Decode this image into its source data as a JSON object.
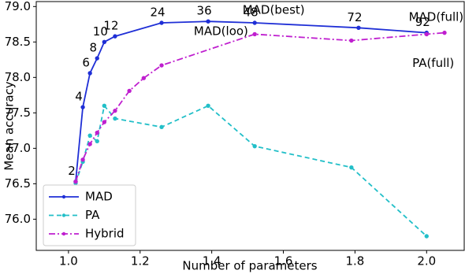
{
  "chart_data": {
    "type": "line",
    "x_label": "Number of parameters",
    "y_label": "Mean accuracy",
    "xlim": [
      0.91,
      2.105
    ],
    "ylim": [
      75.56,
      79.07
    ],
    "xticks": [
      {
        "value": 1,
        "label": "1.0"
      },
      1.2,
      1.4,
      1.6,
      1.8,
      {
        "value": 2,
        "label": "2.0"
      }
    ],
    "yticks": [
      {
        "value": 76,
        "label": "76.0"
      },
      76.5,
      {
        "value": 77,
        "label": "77.0"
      },
      77.5,
      {
        "value": 78,
        "label": "78.0"
      },
      78.5,
      {
        "value": 79,
        "label": "79.0"
      }
    ],
    "grid": false,
    "legend": "lower left",
    "series": [
      {
        "name": "MAD",
        "color": "#1f2fd6",
        "dash": "solid",
        "x": [
          1.02,
          1.04,
          1.06,
          1.08,
          1.1,
          1.13,
          1.26,
          1.39,
          1.52,
          1.81,
          2.0
        ],
        "values": [
          76.53,
          77.58,
          78.06,
          78.27,
          78.5,
          78.58,
          78.77,
          78.79,
          78.77,
          78.7,
          78.63
        ],
        "labels": [
          "2",
          "4",
          "6",
          "8",
          "10",
          "12",
          "24",
          "36",
          "48",
          "72",
          "92"
        ]
      },
      {
        "name": "PA",
        "color": "#22bfc8",
        "dash": "dashed",
        "x": [
          1.02,
          1.04,
          1.06,
          1.08,
          1.1,
          1.13,
          1.26,
          1.39,
          1.52,
          1.79,
          2.0
        ],
        "values": [
          76.51,
          76.81,
          77.18,
          77.1,
          77.6,
          77.42,
          77.3,
          77.6,
          77.03,
          76.73,
          75.76
        ]
      },
      {
        "name": "Hybrid",
        "color": "#bf1fcf",
        "dash": "dashdot",
        "x": [
          1.02,
          1.04,
          1.06,
          1.08,
          1.1,
          1.13,
          1.17,
          1.21,
          1.26,
          1.52,
          1.79,
          2.0,
          2.05
        ],
        "values": [
          76.53,
          76.84,
          77.06,
          77.22,
          77.37,
          77.53,
          77.81,
          77.99,
          78.17,
          78.61,
          78.52,
          78.61,
          78.63
        ]
      }
    ],
    "annotations": [
      {
        "text": "MAD(best)",
        "x": 1.486,
        "y": 78.95,
        "color": "#2e9a2e"
      },
      {
        "text": "MAD(loo)",
        "x": 1.35,
        "y": 78.65,
        "color": "#2e9a2e"
      },
      {
        "text": "MAD(full)",
        "x": 1.95,
        "y": 78.85,
        "color": "#ee1111"
      },
      {
        "text": "PA(full)",
        "x": 1.96,
        "y": 78.2,
        "color": "#ee1111"
      }
    ]
  }
}
